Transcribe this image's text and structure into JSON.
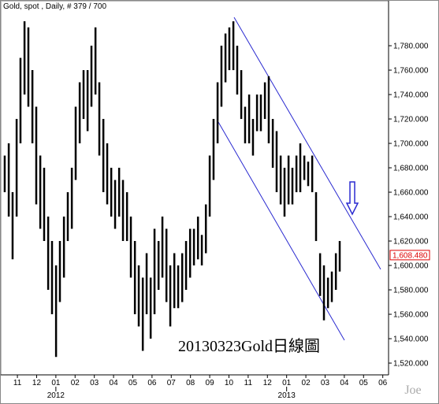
{
  "title": "Gold, spot , Daily, # 379 / 700",
  "chart_data": {
    "type": "range",
    "annotation": "20130323Gold日線圖",
    "watermark": "Joe",
    "color": "#000000",
    "last_value": 1608.48,
    "last_value_label": "1,608.480",
    "xlim": [
      -0.7,
      19.3
    ],
    "xticks": [
      {
        "value": 0,
        "label": "11"
      },
      {
        "value": 1,
        "label": "12"
      },
      {
        "value": 2,
        "label": "01"
      },
      {
        "value": 3,
        "label": "02"
      },
      {
        "value": 4,
        "label": "03"
      },
      {
        "value": 5,
        "label": "04"
      },
      {
        "value": 6,
        "label": "05"
      },
      {
        "value": 7,
        "label": "06"
      },
      {
        "value": 8,
        "label": "07"
      },
      {
        "value": 9,
        "label": "08"
      },
      {
        "value": 10,
        "label": "09"
      },
      {
        "value": 11,
        "label": "10"
      },
      {
        "value": 12,
        "label": "11"
      },
      {
        "value": 13,
        "label": "12"
      },
      {
        "value": 14,
        "label": "01"
      },
      {
        "value": 15,
        "label": "02"
      },
      {
        "value": 16,
        "label": "03"
      },
      {
        "value": 17,
        "label": "04"
      },
      {
        "value": 18,
        "label": "05"
      },
      {
        "value": 19,
        "label": "06"
      }
    ],
    "year_ticks": [
      {
        "value": 2,
        "label": "2012"
      },
      {
        "value": 14,
        "label": "2013"
      }
    ],
    "ylim": [
      1511,
      1811
    ],
    "yticks": [
      {
        "value": 1520,
        "label": "1,520.000"
      },
      {
        "value": 1540,
        "label": "1,540.000"
      },
      {
        "value": 1560,
        "label": "1,560.000"
      },
      {
        "value": 1580,
        "label": "1,580.000"
      },
      {
        "value": 1600,
        "label": "1,600.000"
      },
      {
        "value": 1620,
        "label": "1,620.000"
      },
      {
        "value": 1640,
        "label": "1,640.000"
      },
      {
        "value": 1660,
        "label": "1,660.000"
      },
      {
        "value": 1680,
        "label": "1,680.000"
      },
      {
        "value": 1700,
        "label": "1,700.000"
      },
      {
        "value": 1720,
        "label": "1,720.000"
      },
      {
        "value": 1740,
        "label": "1,740.000"
      },
      {
        "value": 1760,
        "label": "1,760.000"
      },
      {
        "value": 1780,
        "label": "1,780.000"
      }
    ],
    "x": [
      -0.66,
      -0.45,
      -0.25,
      -0.04,
      0.16,
      0.37,
      0.57,
      0.78,
      0.98,
      1.19,
      1.39,
      1.6,
      1.8,
      2.01,
      2.21,
      2.42,
      2.62,
      2.83,
      3.03,
      3.24,
      3.44,
      3.65,
      3.85,
      4.06,
      4.26,
      4.47,
      4.67,
      4.88,
      5.08,
      5.29,
      5.49,
      5.7,
      5.9,
      6.11,
      6.31,
      6.52,
      6.72,
      6.93,
      7.13,
      7.34,
      7.54,
      7.75,
      7.95,
      8.16,
      8.36,
      8.57,
      8.77,
      8.98,
      9.18,
      9.39,
      9.59,
      9.8,
      10.0,
      10.2,
      10.41,
      10.61,
      10.82,
      11.02,
      11.23,
      11.43,
      11.64,
      11.84,
      12.05,
      12.25,
      12.46,
      12.66,
      12.87,
      13.07,
      13.28,
      13.48,
      13.69,
      13.89,
      14.1,
      14.3,
      14.51,
      14.71,
      14.92,
      15.12,
      15.33,
      15.53,
      15.74,
      15.94,
      16.15,
      16.35,
      16.56,
      16.76
    ],
    "high": [
      1690,
      1700,
      1660,
      1720,
      1770,
      1800,
      1795,
      1760,
      1730,
      1690,
      1680,
      1640,
      1620,
      1600,
      1620,
      1640,
      1660,
      1680,
      1730,
      1750,
      1760,
      1760,
      1780,
      1795,
      1750,
      1720,
      1700,
      1680,
      1670,
      1680,
      1670,
      1660,
      1640,
      1620,
      1600,
      1590,
      1610,
      1590,
      1630,
      1620,
      1640,
      1630,
      1600,
      1610,
      1600,
      1610,
      1620,
      1630,
      1630,
      1640,
      1625,
      1650,
      1690,
      1720,
      1750,
      1780,
      1790,
      1795,
      1800,
      1780,
      1760,
      1730,
      1740,
      1720,
      1740,
      1740,
      1750,
      1755,
      1720,
      1710,
      1690,
      1680,
      1690,
      1680,
      1690,
      1700,
      1690,
      1685,
      1690,
      1660,
      1610,
      1600,
      1590,
      1595,
      1610,
      1620
    ],
    "low": [
      1660,
      1640,
      1605,
      1640,
      1700,
      1740,
      1730,
      1700,
      1650,
      1630,
      1620,
      1580,
      1560,
      1525,
      1570,
      1590,
      1620,
      1630,
      1670,
      1700,
      1720,
      1710,
      1730,
      1740,
      1690,
      1660,
      1650,
      1640,
      1630,
      1640,
      1620,
      1620,
      1590,
      1560,
      1550,
      1530,
      1560,
      1540,
      1560,
      1580,
      1590,
      1570,
      1550,
      1565,
      1565,
      1570,
      1580,
      1590,
      1600,
      1605,
      1600,
      1610,
      1640,
      1670,
      1700,
      1730,
      1750,
      1760,
      1760,
      1740,
      1720,
      1700,
      1700,
      1690,
      1710,
      1710,
      1720,
      1700,
      1680,
      1660,
      1650,
      1640,
      1650,
      1650,
      1660,
      1660,
      1670,
      1665,
      1660,
      1620,
      1575,
      1555,
      1565,
      1570,
      1580,
      1595
    ]
  }
}
